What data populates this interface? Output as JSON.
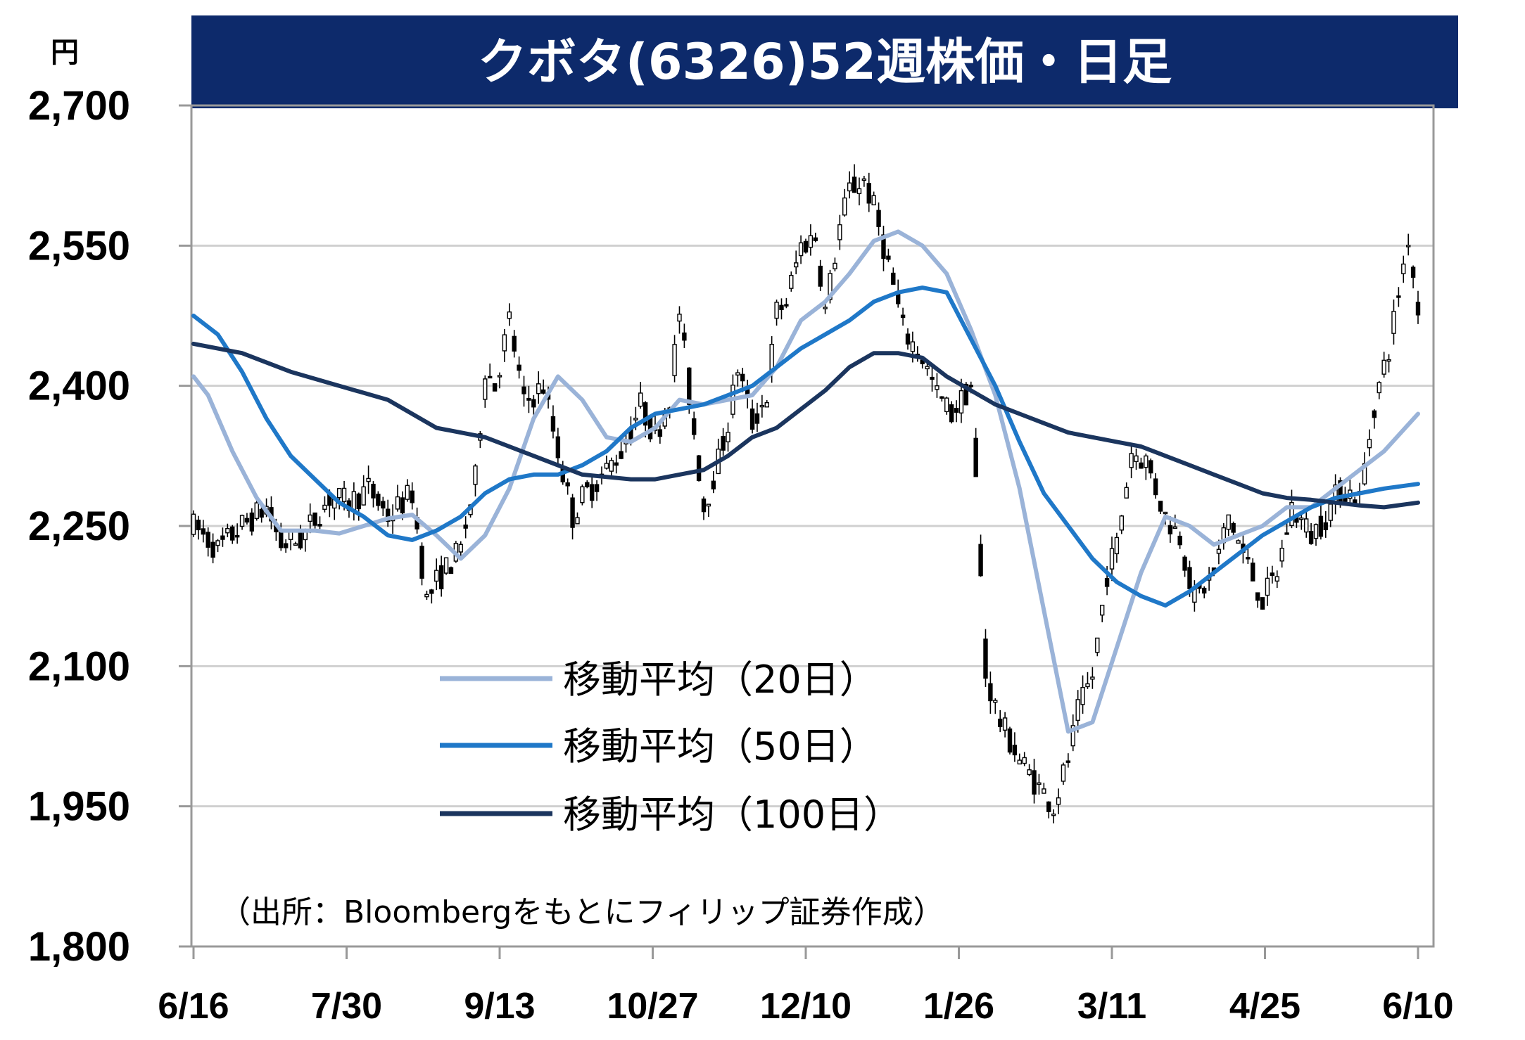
{
  "chart_data": {
    "type": "candlestick",
    "title": "クボタ(6326)52週株価・日足",
    "y_unit": "円",
    "ylim": [
      1800,
      2700
    ],
    "y_ticks": [
      1800,
      1950,
      2100,
      2250,
      2400,
      2550,
      2700
    ],
    "y_tick_labels": [
      "1,800",
      "1,950",
      "2,100",
      "2,250",
      "2,400",
      "2,550",
      "2,700"
    ],
    "x_tick_labels": [
      "6/16",
      "7/30",
      "9/13",
      "10/27",
      "12/10",
      "1/26",
      "3/11",
      "4/25",
      "6/10"
    ],
    "grid": true,
    "legend_position": "center-left",
    "source_note": "（出所：Bloombergをもとにフィリップ証券作成）",
    "colors": {
      "title_bg": "#0d2a6b",
      "ma20": "#9ab3d8",
      "ma50": "#1f78c8",
      "ma100": "#1b355e",
      "grid": "#d0d0d0",
      "axis": "#999999"
    },
    "series": [
      {
        "name": "移動平均（20日）",
        "x": [
          0,
          3,
          8,
          13,
          18,
          25,
          30,
          35,
          40,
          45,
          50,
          55,
          60,
          65,
          70,
          75,
          80,
          85,
          90,
          95,
          100,
          105,
          110,
          115,
          120,
          125,
          130,
          135,
          140,
          145,
          150,
          155,
          160,
          165,
          170,
          175,
          180,
          185,
          190,
          195,
          200,
          205,
          210,
          215,
          220,
          225,
          230,
          235,
          240,
          245,
          252
        ],
        "values": [
          2410,
          2390,
          2330,
          2280,
          2245,
          2245,
          2242,
          2250,
          2258,
          2262,
          2240,
          2215,
          2240,
          2290,
          2365,
          2410,
          2385,
          2345,
          2340,
          2355,
          2385,
          2380,
          2385,
          2390,
          2420,
          2470,
          2490,
          2520,
          2555,
          2565,
          2550,
          2520,
          2460,
          2390,
          2290,
          2160,
          2030,
          2040,
          2120,
          2200,
          2260,
          2250,
          2230,
          2240,
          2250,
          2270,
          2270,
          2290,
          2310,
          2330,
          2370
        ]
      },
      {
        "name": "移動平均（50日）",
        "x": [
          0,
          5,
          10,
          15,
          20,
          25,
          30,
          35,
          40,
          45,
          50,
          55,
          60,
          65,
          70,
          75,
          80,
          85,
          90,
          95,
          100,
          105,
          110,
          115,
          120,
          125,
          130,
          135,
          140,
          145,
          150,
          155,
          160,
          165,
          170,
          175,
          180,
          185,
          190,
          195,
          200,
          205,
          210,
          215,
          220,
          225,
          230,
          235,
          240,
          245,
          252
        ],
        "values": [
          2475,
          2455,
          2415,
          2365,
          2325,
          2300,
          2275,
          2260,
          2240,
          2235,
          2245,
          2260,
          2285,
          2300,
          2305,
          2305,
          2315,
          2330,
          2355,
          2370,
          2375,
          2380,
          2390,
          2400,
          2420,
          2440,
          2455,
          2470,
          2490,
          2500,
          2505,
          2500,
          2450,
          2400,
          2340,
          2285,
          2250,
          2215,
          2190,
          2175,
          2165,
          2180,
          2200,
          2220,
          2240,
          2255,
          2270,
          2280,
          2285,
          2290,
          2295
        ]
      },
      {
        "name": "移動平均（100日）",
        "x": [
          0,
          10,
          20,
          30,
          40,
          50,
          60,
          70,
          80,
          90,
          95,
          100,
          105,
          110,
          115,
          120,
          125,
          130,
          135,
          140,
          145,
          150,
          155,
          160,
          165,
          170,
          175,
          180,
          185,
          190,
          195,
          200,
          205,
          210,
          215,
          220,
          225,
          230,
          235,
          240,
          245,
          252
        ],
        "values": [
          2445,
          2435,
          2415,
          2400,
          2385,
          2355,
          2345,
          2325,
          2305,
          2300,
          2300,
          2305,
          2310,
          2325,
          2345,
          2355,
          2375,
          2395,
          2420,
          2435,
          2435,
          2430,
          2410,
          2395,
          2380,
          2370,
          2360,
          2350,
          2345,
          2340,
          2335,
          2325,
          2315,
          2305,
          2295,
          2285,
          2280,
          2278,
          2275,
          2272,
          2270,
          2275
        ]
      }
    ]
  }
}
